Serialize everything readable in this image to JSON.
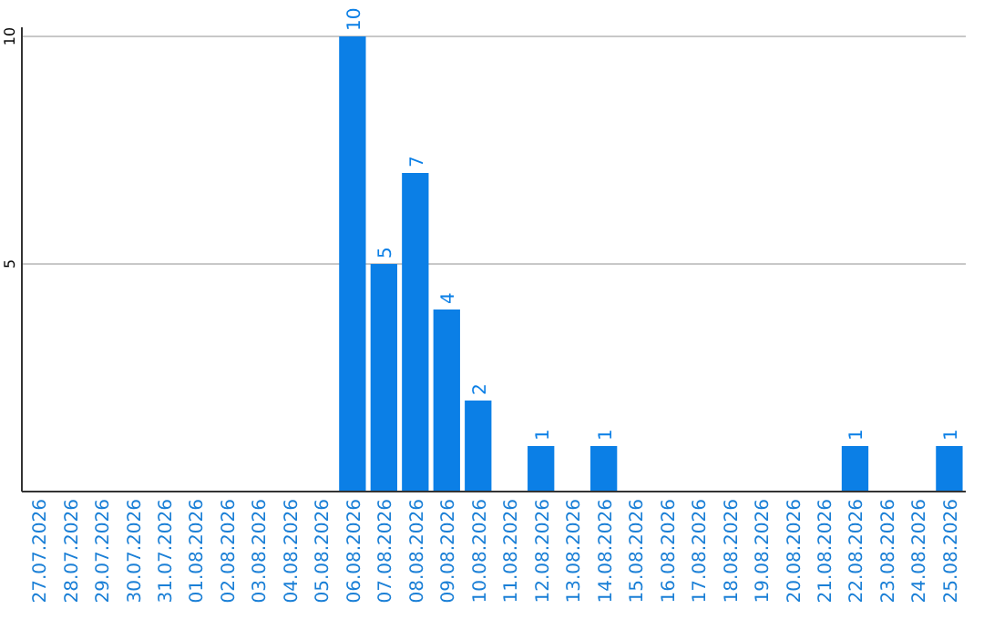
{
  "chart_data": {
    "type": "bar",
    "categories": [
      "27.07.2026",
      "28.07.2026",
      "29.07.2026",
      "30.07.2026",
      "31.07.2026",
      "01.08.2026",
      "02.08.2026",
      "03.08.2026",
      "04.08.2026",
      "05.08.2026",
      "06.08.2026",
      "07.08.2026",
      "08.08.2026",
      "09.08.2026",
      "10.08.2026",
      "11.08.2026",
      "12.08.2026",
      "13.08.2026",
      "14.08.2026",
      "15.08.2026",
      "16.08.2026",
      "17.08.2026",
      "18.08.2026",
      "19.08.2026",
      "20.08.2026",
      "21.08.2026",
      "22.08.2026",
      "23.08.2026",
      "24.08.2026",
      "25.08.2026"
    ],
    "values": [
      0,
      0,
      0,
      0,
      0,
      0,
      0,
      0,
      0,
      0,
      10,
      5,
      7,
      4,
      2,
      0,
      1,
      0,
      1,
      0,
      0,
      0,
      0,
      0,
      0,
      0,
      1,
      0,
      0,
      1
    ],
    "value_labels": [
      null,
      null,
      null,
      null,
      null,
      null,
      null,
      null,
      null,
      null,
      "10",
      "5",
      "7",
      "4",
      "2",
      null,
      "1",
      null,
      "1",
      null,
      null,
      null,
      null,
      null,
      null,
      null,
      "1",
      null,
      null,
      "1"
    ],
    "color": "#0b7fe6",
    "ylim": [
      0,
      10
    ],
    "yticks": [
      5,
      10
    ],
    "grid": "y"
  }
}
